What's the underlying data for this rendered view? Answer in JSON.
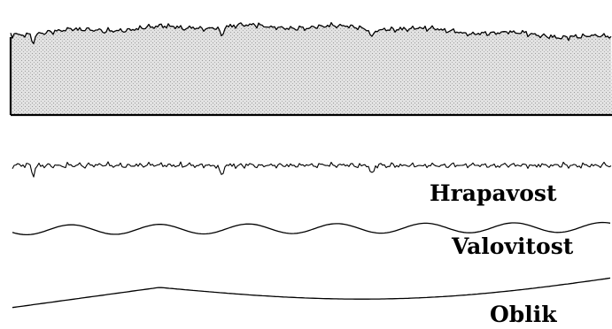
{
  "labels": {
    "roughness": "Hrapavost",
    "waviness": "Valovitost",
    "form": "Oblik"
  },
  "colors": {
    "line": "#000000",
    "fill": "#d4d4d4",
    "background": "#ffffff"
  }
}
